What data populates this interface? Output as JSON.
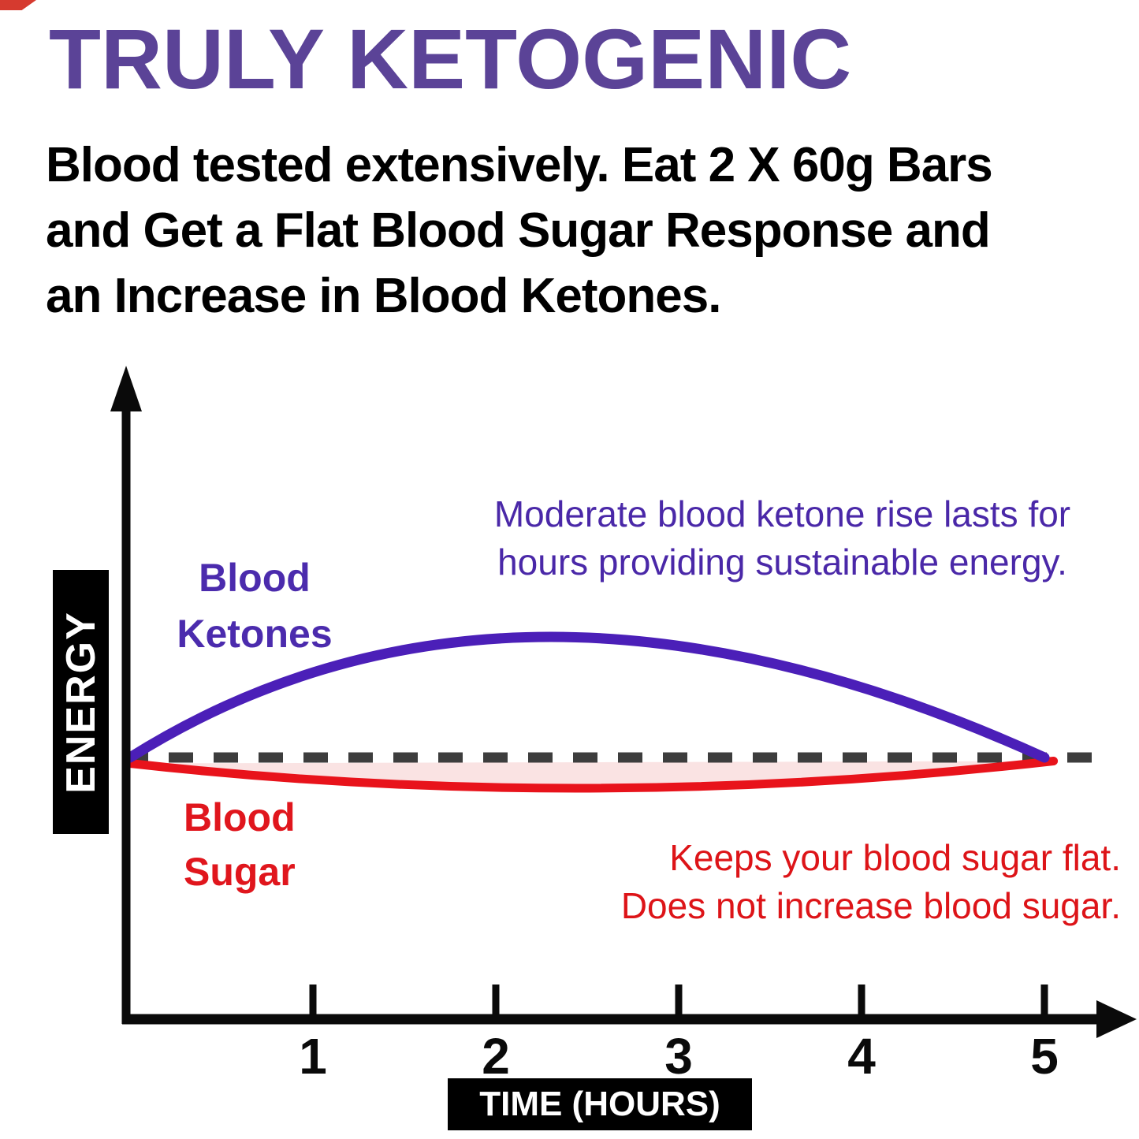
{
  "header": {
    "title": "TRULY KETOGENIC",
    "subtitle_lines": [
      "Blood tested extensively. Eat 2 X 60g Bars",
      "and Get a Flat Blood Sugar Response and",
      "an Increase in Blood Ketones."
    ]
  },
  "chart_data": {
    "type": "line",
    "title": "",
    "xlabel": "TIME (HOURS)",
    "ylabel": "ENERGY",
    "xlim": [
      0,
      5.5
    ],
    "ylim": [
      -1,
      2.2
    ],
    "xticks": [
      1,
      2,
      3,
      4,
      5
    ],
    "grid": false,
    "legend_position": "inline-labels",
    "baseline": {
      "y": 0,
      "style": "dashed",
      "color": "#3d3d3d"
    },
    "series": [
      {
        "name": "Blood Ketones",
        "color": "#4b1fb8",
        "label_color": "#4b2bad",
        "key_points": {
          "start": [
            0,
            0
          ],
          "peak": [
            2.3,
            1.02
          ],
          "end": [
            5.0,
            0.0
          ]
        }
      },
      {
        "name": "Blood Sugar",
        "color": "#e8131b",
        "label_color": "#e0161d",
        "fill_to_baseline": "#fae3e3",
        "key_points": {
          "start": [
            0,
            -0.05
          ],
          "peak": [
            2.5,
            -0.26
          ],
          "end": [
            5.05,
            -0.03
          ]
        }
      }
    ],
    "annotations": [
      {
        "target": "Blood Ketones",
        "color": "#4a28a8",
        "lines": [
          "Moderate blood ketone rise lasts for",
          "hours providing sustainable energy."
        ]
      },
      {
        "target": "Blood Sugar",
        "color": "#dd1418",
        "lines": [
          "Keeps your blood sugar flat.",
          "Does not increase blood sugar."
        ]
      }
    ]
  },
  "colors": {
    "title": "#5b4397",
    "body_text": "#000000",
    "axis": "#0a0a0a",
    "axis_label_bg": "#000000",
    "axis_label_text": "#ffffff",
    "background": "#ffffff"
  }
}
